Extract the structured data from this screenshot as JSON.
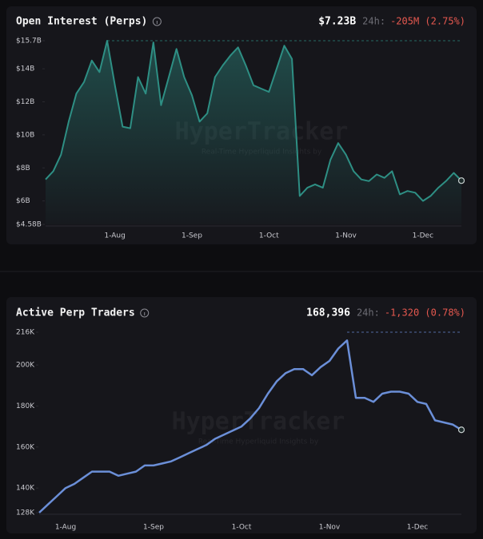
{
  "chart_data": [
    {
      "type": "line",
      "title": "Open Interest (Perps)",
      "value_label": "$7.23B",
      "change_label": "24h:",
      "change": "-205M (2.75%)",
      "watermark": "HyperTracker",
      "watermark_subtitle": "Real-Time Hyperliquid Insights by",
      "color": "#2e8f84",
      "categories": [
        null,
        null,
        null,
        null,
        null,
        null,
        null,
        null,
        null,
        "1-Aug",
        null,
        null,
        null,
        null,
        null,
        null,
        null,
        null,
        null,
        "1-Sep",
        null,
        null,
        null,
        null,
        null,
        null,
        null,
        null,
        null,
        "1-Oct",
        null,
        null,
        null,
        null,
        null,
        null,
        null,
        null,
        null,
        "1-Nov",
        null,
        null,
        null,
        null,
        null,
        null,
        null,
        null,
        null,
        "1-Dec",
        null,
        null,
        null,
        null,
        null
      ],
      "values": [
        7.3,
        7.8,
        8.8,
        10.8,
        12.5,
        13.2,
        14.5,
        13.8,
        15.7,
        13.0,
        10.5,
        10.4,
        13.5,
        12.5,
        15.6,
        11.8,
        13.5,
        15.2,
        13.5,
        12.4,
        10.8,
        11.3,
        13.5,
        14.2,
        14.8,
        15.3,
        14.2,
        13.0,
        12.8,
        12.6,
        14.0,
        15.4,
        14.6,
        6.3,
        6.8,
        7.0,
        6.8,
        8.5,
        9.5,
        8.8,
        7.8,
        7.3,
        7.2,
        7.6,
        7.4,
        7.8,
        6.4,
        6.6,
        6.5,
        6.0,
        6.3,
        6.8,
        7.2,
        7.7,
        7.23
      ],
      "ylim": [
        4.58,
        15.7
      ],
      "yticks": [
        {
          "value": 4.58,
          "label": "$4.58B"
        },
        {
          "value": 6,
          "label": "$6B"
        },
        {
          "value": 8,
          "label": "$8B"
        },
        {
          "value": 10,
          "label": "$10B"
        },
        {
          "value": 12,
          "label": "$12B"
        },
        {
          "value": 14,
          "label": "$14B"
        },
        {
          "value": 15.7,
          "label": "$15.7B"
        }
      ]
    },
    {
      "type": "line",
      "title": "Active Perp Traders",
      "value_label": "168,396",
      "change_label": "24h:",
      "change": "-1,320 (0.78%)",
      "watermark": "HyperTracker",
      "watermark_subtitle": "Real-Time Hyperliquid Insights by",
      "color": "#6b8fd8",
      "categories": [
        null,
        null,
        null,
        "1-Aug",
        null,
        null,
        null,
        null,
        null,
        null,
        null,
        null,
        null,
        "1-Sep",
        null,
        null,
        null,
        null,
        null,
        null,
        null,
        null,
        null,
        "1-Oct",
        null,
        null,
        null,
        null,
        null,
        null,
        null,
        null,
        null,
        "1-Nov",
        null,
        null,
        null,
        null,
        null,
        null,
        null,
        null,
        null,
        "1-Dec",
        null,
        null,
        null,
        null,
        null
      ],
      "values": [
        128,
        132,
        136,
        140,
        142,
        145,
        148,
        148,
        148,
        146,
        147,
        148,
        151,
        151,
        152,
        153,
        155,
        157,
        159,
        161,
        164,
        166,
        168,
        170,
        174,
        179,
        186,
        192,
        196,
        198,
        198,
        195,
        199,
        202,
        208,
        212,
        184,
        184,
        182,
        186,
        187,
        187,
        186,
        182,
        181,
        173,
        172,
        171,
        168.396
      ],
      "ylim": [
        128,
        216
      ],
      "yticks": [
        {
          "value": 128,
          "label": "128K"
        },
        {
          "value": 140,
          "label": "140K"
        },
        {
          "value": 160,
          "label": "160K"
        },
        {
          "value": 180,
          "label": "180K"
        },
        {
          "value": 200,
          "label": "200K"
        },
        {
          "value": 216,
          "label": "216K"
        }
      ]
    }
  ]
}
